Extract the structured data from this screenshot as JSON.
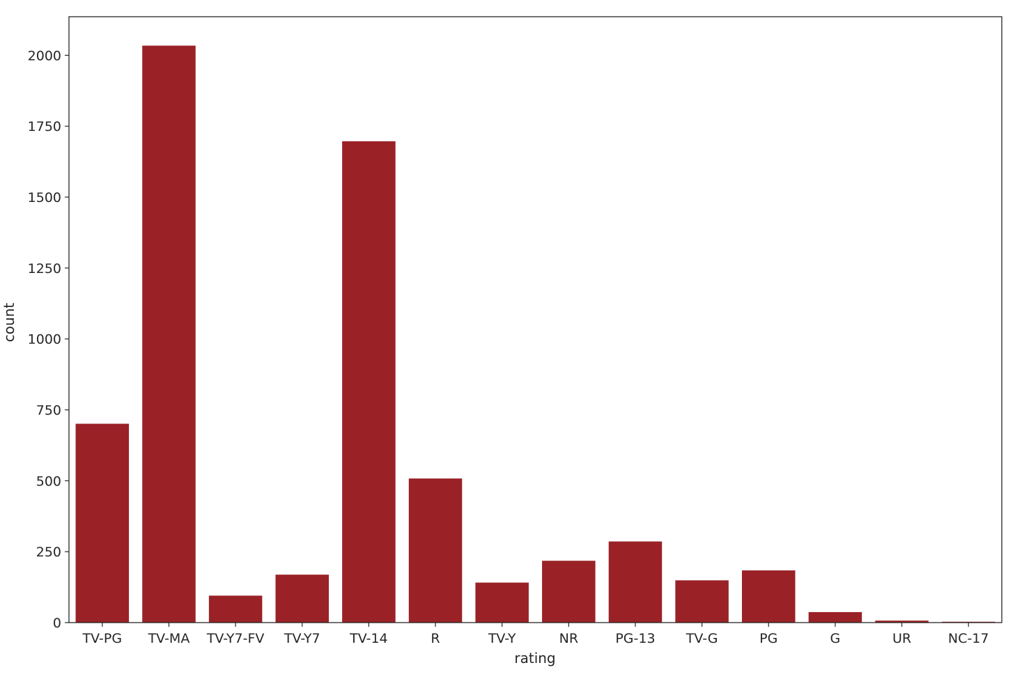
{
  "chart_data": {
    "type": "bar",
    "title": "",
    "xlabel": "rating",
    "ylabel": "count",
    "categories": [
      "TV-PG",
      "TV-MA",
      "TV-Y7-FV",
      "TV-Y7",
      "TV-14",
      "R",
      "TV-Y",
      "NR",
      "PG-13",
      "TV-G",
      "PG",
      "G",
      "UR",
      "NC-17"
    ],
    "values": [
      701,
      2034,
      95,
      169,
      1697,
      508,
      141,
      218,
      286,
      149,
      184,
      37,
      7,
      3
    ],
    "yticks": [
      0,
      250,
      500,
      750,
      1000,
      1250,
      1500,
      1750,
      2000
    ],
    "ylim": [
      0,
      2136
    ],
    "bar_color": "#9a2227",
    "grid": false,
    "legend": "none"
  }
}
